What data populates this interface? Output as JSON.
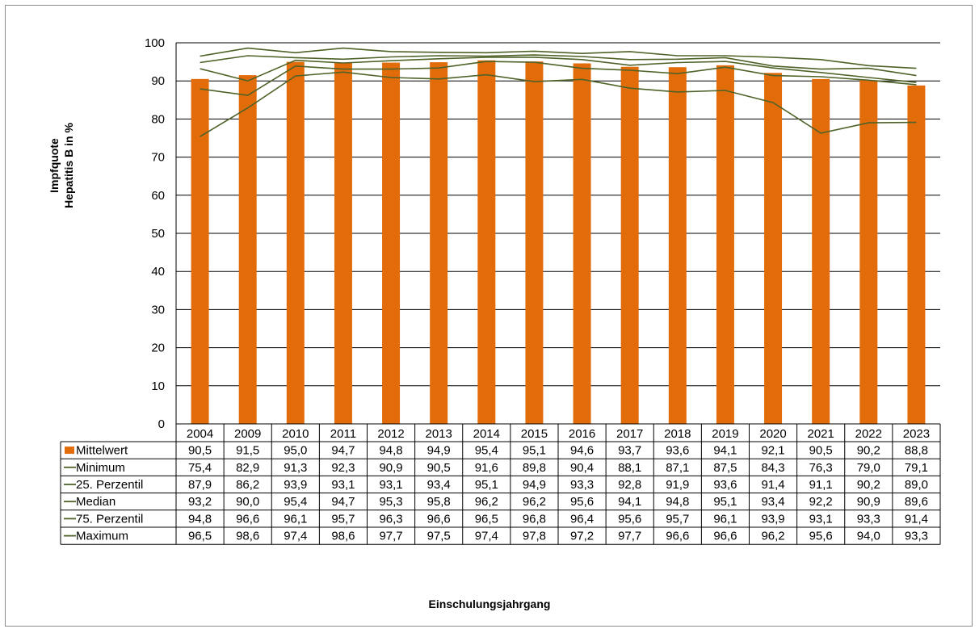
{
  "chart_data": {
    "type": "bar",
    "title": "",
    "xlabel": "Einschulungsjahrgang",
    "ylabel_lines": [
      "Impfquote",
      "Hepatitis B in %"
    ],
    "ylim": [
      0,
      100
    ],
    "yticks": [
      0,
      10,
      20,
      30,
      40,
      50,
      60,
      70,
      80,
      90,
      100
    ],
    "grid": true,
    "legend_placement": "data-table-left",
    "categories": [
      "2004",
      "2009",
      "2010",
      "2011",
      "2012",
      "2013",
      "2014",
      "2015",
      "2016",
      "2017",
      "2018",
      "2019",
      "2020",
      "2021",
      "2022",
      "2023"
    ],
    "series": [
      {
        "name": "Mittelwert",
        "kind": "bar",
        "color": "#E36C0A",
        "values": [
          90.5,
          91.5,
          95.0,
          94.7,
          94.8,
          94.9,
          95.4,
          95.1,
          94.6,
          93.7,
          93.6,
          94.1,
          92.1,
          90.5,
          90.2,
          88.8
        ],
        "labels": [
          "90,5",
          "91,5",
          "95,0",
          "94,7",
          "94,8",
          "94,9",
          "95,4",
          "95,1",
          "94,6",
          "93,7",
          "93,6",
          "94,1",
          "92,1",
          "90,5",
          "90,2",
          "88,8"
        ]
      },
      {
        "name": "Minimum",
        "kind": "line",
        "color": "#4F6228",
        "values": [
          75.4,
          82.9,
          91.3,
          92.3,
          90.9,
          90.5,
          91.6,
          89.8,
          90.4,
          88.1,
          87.1,
          87.5,
          84.3,
          76.3,
          79.0,
          79.1
        ],
        "labels": [
          "75,4",
          "82,9",
          "91,3",
          "92,3",
          "90,9",
          "90,5",
          "91,6",
          "89,8",
          "90,4",
          "88,1",
          "87,1",
          "87,5",
          "84,3",
          "76,3",
          "79,0",
          "79,1"
        ]
      },
      {
        "name": "25. Perzentil",
        "kind": "line",
        "color": "#4F6228",
        "values": [
          87.9,
          86.2,
          93.9,
          93.1,
          93.1,
          93.4,
          95.1,
          94.9,
          93.3,
          92.8,
          91.9,
          93.6,
          91.4,
          91.1,
          90.2,
          89.0
        ],
        "labels": [
          "87,9",
          "86,2",
          "93,9",
          "93,1",
          "93,1",
          "93,4",
          "95,1",
          "94,9",
          "93,3",
          "92,8",
          "91,9",
          "93,6",
          "91,4",
          "91,1",
          "90,2",
          "89,0"
        ]
      },
      {
        "name": "Median",
        "kind": "line",
        "color": "#4F6228",
        "values": [
          93.2,
          90.0,
          95.4,
          94.7,
          95.3,
          95.8,
          96.2,
          96.2,
          95.6,
          94.1,
          94.8,
          95.1,
          93.4,
          92.2,
          90.9,
          89.6
        ],
        "labels": [
          "93,2",
          "90,0",
          "95,4",
          "94,7",
          "95,3",
          "95,8",
          "96,2",
          "96,2",
          "95,6",
          "94,1",
          "94,8",
          "95,1",
          "93,4",
          "92,2",
          "90,9",
          "89,6"
        ]
      },
      {
        "name": "75. Perzentil",
        "kind": "line",
        "color": "#4F6228",
        "values": [
          94.8,
          96.6,
          96.1,
          95.7,
          96.3,
          96.6,
          96.5,
          96.8,
          96.4,
          95.6,
          95.7,
          96.1,
          93.9,
          93.1,
          93.3,
          91.4
        ],
        "labels": [
          "94,8",
          "96,6",
          "96,1",
          "95,7",
          "96,3",
          "96,6",
          "96,5",
          "96,8",
          "96,4",
          "95,6",
          "95,7",
          "96,1",
          "93,9",
          "93,1",
          "93,3",
          "91,4"
        ]
      },
      {
        "name": "Maximum",
        "kind": "line",
        "color": "#4F6228",
        "values": [
          96.5,
          98.6,
          97.4,
          98.6,
          97.7,
          97.5,
          97.4,
          97.8,
          97.2,
          97.7,
          96.6,
          96.6,
          96.2,
          95.6,
          94.0,
          93.3
        ],
        "labels": [
          "96,5",
          "98,6",
          "97,4",
          "98,6",
          "97,7",
          "97,5",
          "97,4",
          "97,8",
          "97,2",
          "97,7",
          "96,6",
          "96,6",
          "96,2",
          "95,6",
          "94,0",
          "93,3"
        ]
      }
    ]
  }
}
